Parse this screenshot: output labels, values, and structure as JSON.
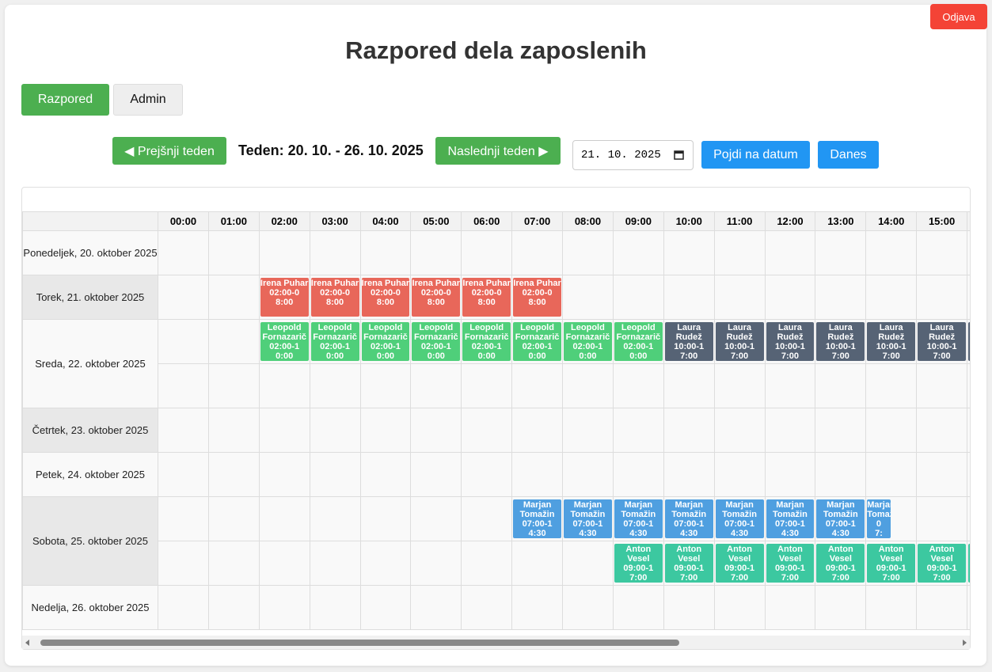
{
  "logout": "Odjava",
  "title": "Razpored dela zaposlenih",
  "tabs": [
    "Razpored",
    "Admin"
  ],
  "nav": {
    "prev": "◀ Prejšnji teden",
    "week": "Teden: 20. 10. - 26. 10. 2025",
    "next": "Naslednji teden ▶",
    "date": "21. 10. 2025",
    "go": "Pojdi na datum",
    "today": "Danes"
  },
  "hours": [
    "00:00",
    "01:00",
    "02:00",
    "03:00",
    "04:00",
    "05:00",
    "06:00",
    "07:00",
    "08:00",
    "09:00",
    "10:00",
    "11:00",
    "12:00",
    "13:00",
    "14:00",
    "15:00"
  ],
  "shifts": [
    {
      "name": "Irena Puhar",
      "time": "02:00-08:00",
      "color": "#e8675a"
    },
    {
      "name": "Leopold Fornazarič",
      "time": "02:00-10:00",
      "color": "#4fcf7a"
    },
    {
      "name": "Laura Rudež",
      "time": "10:00-17:00",
      "color": "#566375"
    },
    {
      "name": "Marjan Tomažin",
      "time": "07:00-14:30",
      "color": "#4f9fe0"
    },
    {
      "name": "Anton Vesel",
      "time": "09:00-17:00",
      "color": "#3cc8a0"
    }
  ],
  "days": [
    {
      "label": "Ponedeljek, 20. oktober 2025",
      "lanes": [
        []
      ]
    },
    {
      "label": "Torek, 21. oktober 2025",
      "lanes": [
        [
          0
        ]
      ]
    },
    {
      "label": "Sreda, 22. oktober 2025",
      "lanes": [
        [
          1,
          2
        ],
        []
      ]
    },
    {
      "label": "Četrtek, 23. oktober 2025",
      "lanes": [
        []
      ]
    },
    {
      "label": "Petek, 24. oktober 2025",
      "lanes": [
        []
      ]
    },
    {
      "label": "Sobota, 25. oktober 2025",
      "lanes": [
        [
          3
        ],
        [
          4
        ]
      ]
    },
    {
      "label": "Nedelja, 26. oktober 2025",
      "lanes": [
        []
      ]
    }
  ]
}
